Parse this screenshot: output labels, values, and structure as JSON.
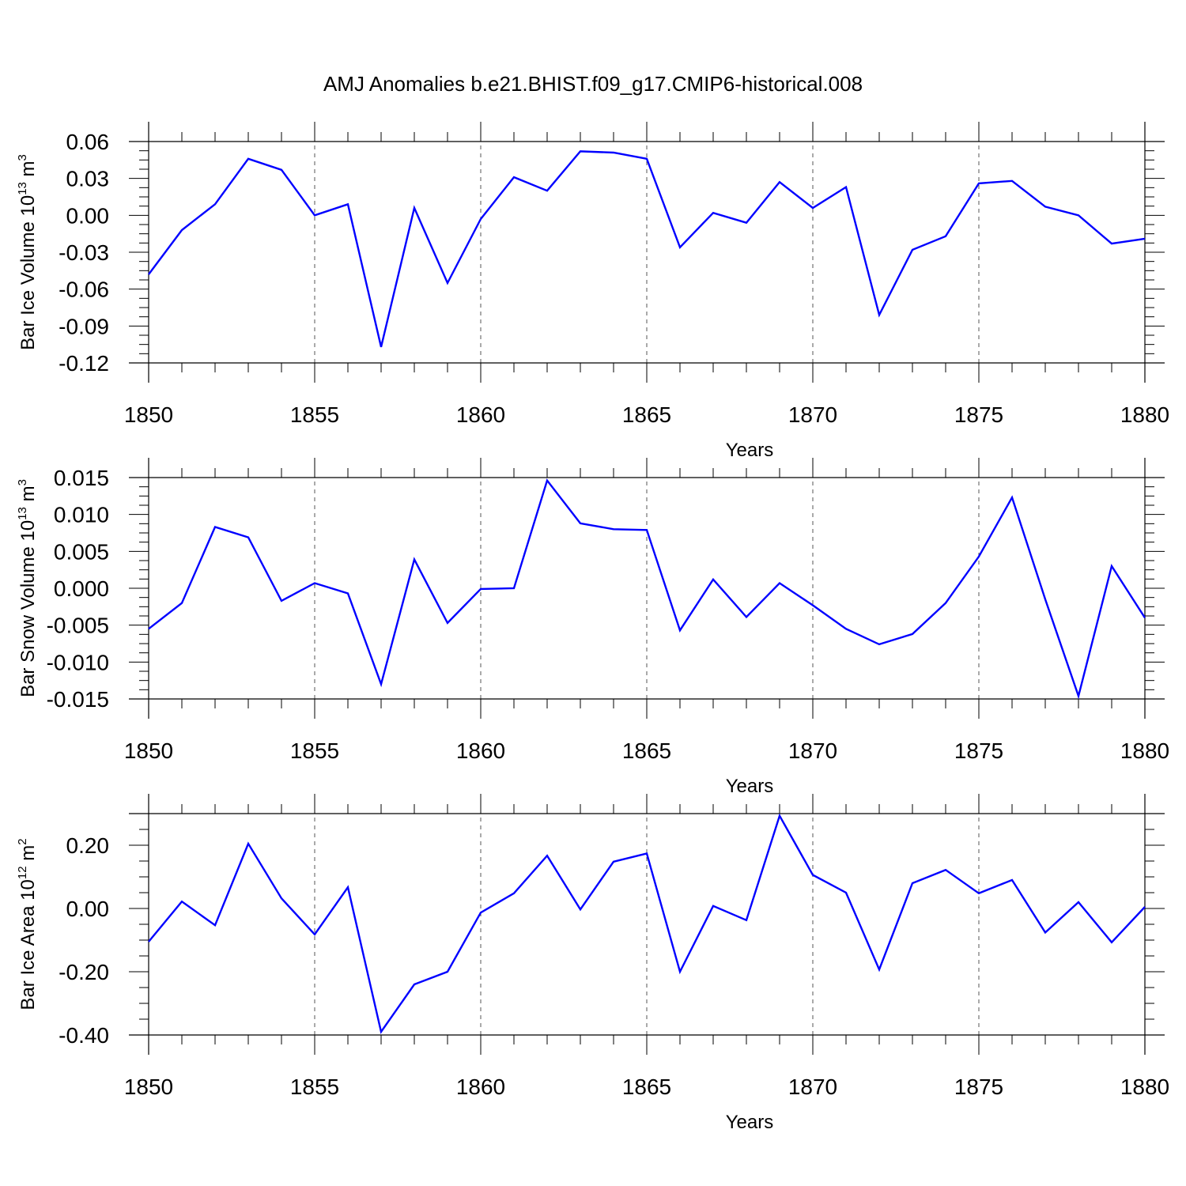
{
  "chart_data": {
    "title": "AMJ Anomalies b.e21.BHIST.f09_g17.CMIP6-historical.008",
    "panels": [
      {
        "type": "line",
        "ylabel": {
          "pre": "Bar Ice Volume 10",
          "exp": "13",
          "mid": " m",
          "exp2": "3"
        },
        "xlabel": "Years",
        "xlim": [
          1850,
          1880
        ],
        "ylim": [
          -0.12,
          0.06
        ],
        "yticks": [
          -0.12,
          -0.09,
          -0.06,
          -0.03,
          0.0,
          0.03,
          0.06
        ],
        "ytick_labels": [
          "-0.12",
          "-0.09",
          "-0.06",
          "-0.03",
          "0.00",
          "0.03",
          "0.06"
        ],
        "line_color": "#0000ff",
        "x": [
          1850,
          1851,
          1852,
          1853,
          1854,
          1855,
          1856,
          1857,
          1858,
          1859,
          1860,
          1861,
          1862,
          1863,
          1864,
          1865,
          1866,
          1867,
          1868,
          1869,
          1870,
          1871,
          1872,
          1873,
          1874,
          1875,
          1876,
          1877,
          1878,
          1879,
          1880
        ],
        "y": [
          -0.048,
          -0.012,
          0.009,
          0.046,
          0.037,
          0.0,
          0.009,
          -0.107,
          0.006,
          -0.055,
          -0.003,
          0.031,
          0.02,
          0.052,
          0.051,
          0.046,
          -0.026,
          0.002,
          -0.006,
          0.027,
          0.006,
          0.023,
          -0.081,
          -0.028,
          -0.017,
          0.026,
          0.028,
          0.007,
          0.0,
          -0.023,
          -0.019
        ]
      },
      {
        "type": "line",
        "ylabel": {
          "pre": "Bar Snow Volume 10",
          "exp": "13",
          "mid": " m",
          "exp2": "3"
        },
        "xlabel": "Years",
        "xlim": [
          1850,
          1880
        ],
        "ylim": [
          -0.015,
          0.015
        ],
        "yticks": [
          -0.015,
          -0.01,
          -0.005,
          0.0,
          0.005,
          0.01,
          0.015
        ],
        "ytick_labels": [
          "-0.015",
          "-0.010",
          "-0.005",
          "0.000",
          "0.005",
          "0.010",
          "0.015"
        ],
        "line_color": "#0000ff",
        "x": [
          1850,
          1851,
          1852,
          1853,
          1854,
          1855,
          1856,
          1857,
          1858,
          1859,
          1860,
          1861,
          1862,
          1863,
          1864,
          1865,
          1866,
          1867,
          1868,
          1869,
          1870,
          1871,
          1872,
          1873,
          1874,
          1875,
          1876,
          1877,
          1878,
          1879,
          1880
        ],
        "y": [
          -0.0055,
          -0.002,
          0.0083,
          0.0069,
          -0.0017,
          0.0007,
          -0.0007,
          -0.013,
          0.0039,
          -0.0047,
          -0.0001,
          0.0,
          0.0146,
          0.0088,
          0.008,
          0.0079,
          -0.0057,
          0.0012,
          -0.0039,
          0.0007,
          -0.0023,
          -0.0055,
          -0.0076,
          -0.0062,
          -0.002,
          0.0043,
          0.0123,
          -0.0015,
          -0.0146,
          0.003,
          -0.004
        ]
      },
      {
        "type": "line",
        "ylabel": {
          "pre": "Bar Ice Area 10",
          "exp": "12",
          "mid": " m",
          "exp2": "2"
        },
        "xlabel": "Years",
        "xlim": [
          1850,
          1880
        ],
        "ylim": [
          -0.4,
          0.3
        ],
        "yticks": [
          -0.4,
          -0.2,
          0.0,
          0.2
        ],
        "ytick_labels": [
          "-0.40",
          "-0.20",
          "0.00",
          "0.20"
        ],
        "line_color": "#0000ff",
        "x": [
          1850,
          1851,
          1852,
          1853,
          1854,
          1855,
          1856,
          1857,
          1858,
          1859,
          1860,
          1861,
          1862,
          1863,
          1864,
          1865,
          1866,
          1867,
          1868,
          1869,
          1870,
          1871,
          1872,
          1873,
          1874,
          1875,
          1876,
          1877,
          1878,
          1879,
          1880
        ],
        "y": [
          -0.105,
          0.022,
          -0.053,
          0.205,
          0.032,
          -0.082,
          0.067,
          -0.39,
          -0.24,
          -0.2,
          -0.013,
          0.048,
          0.167,
          -0.003,
          0.148,
          0.174,
          -0.2,
          0.008,
          -0.037,
          0.293,
          0.106,
          0.05,
          -0.193,
          0.08,
          0.122,
          0.048,
          0.09,
          -0.076,
          0.02,
          -0.107,
          0.005
        ]
      }
    ]
  }
}
